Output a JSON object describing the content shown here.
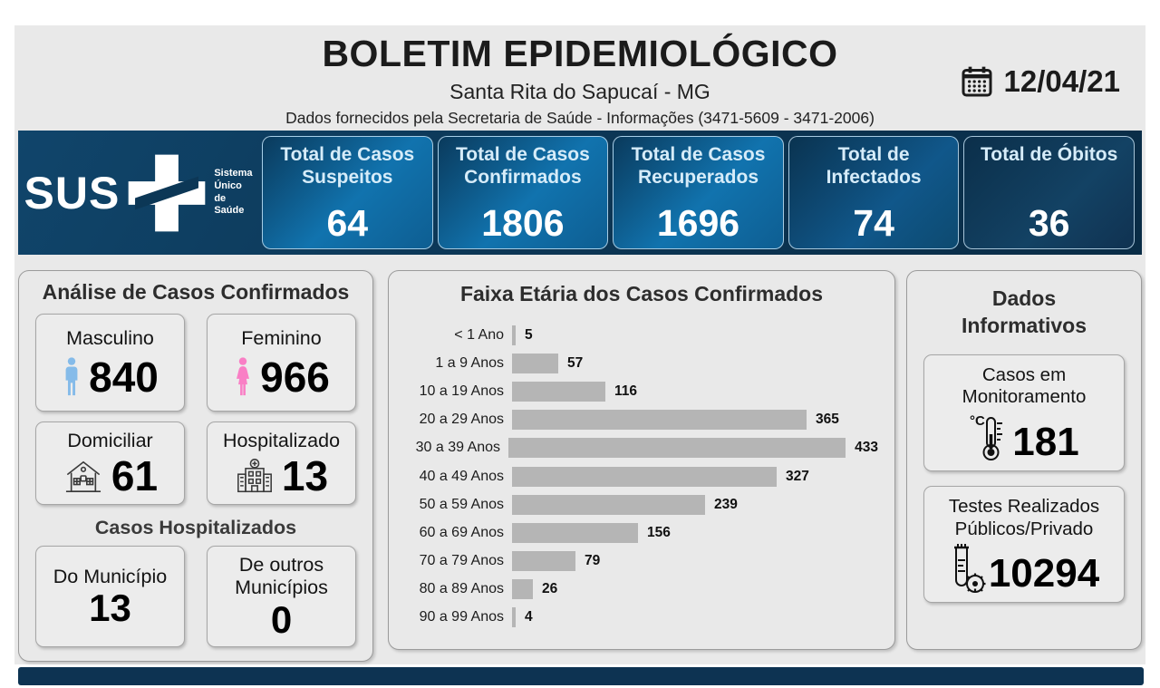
{
  "header": {
    "title": "BOLETIM EPIDEMIOLÓGICO",
    "subtitle": "Santa Rita do Sapucaí - MG",
    "info_line": "Dados fornecidos pela Secretaria de Saúde - Informações (3471-5609 - 3471-2006)",
    "date": "12/04/21"
  },
  "sus_logo": {
    "name": "SUS",
    "tagline": "Sistema\nÚnico\nde Saúde"
  },
  "summary_cards": [
    {
      "label": "Total de Casos Suspeitos",
      "value": "64"
    },
    {
      "label": "Total de Casos Confirmados",
      "value": "1806"
    },
    {
      "label": "Total de Casos Recuperados",
      "value": "1696"
    },
    {
      "label": "Total de Infectados",
      "value": "74"
    },
    {
      "label": "Total de Óbitos",
      "value": "36"
    }
  ],
  "analysis": {
    "title": "Análise de Casos Confirmados",
    "male": {
      "label": "Masculino",
      "value": "840",
      "icon": "male-icon"
    },
    "female": {
      "label": "Feminino",
      "value": "966",
      "icon": "female-icon"
    },
    "home": {
      "label": "Domiciliar",
      "value": "61",
      "icon": "house-icon"
    },
    "hospitalized": {
      "label": "Hospitalizado",
      "value": "13",
      "icon": "hospital-icon"
    },
    "hospital_section": {
      "title": "Casos Hospitalizados",
      "local": {
        "label": "Do Município",
        "value": "13"
      },
      "other": {
        "label": "De outros Municípios",
        "value": "0"
      }
    }
  },
  "chart_data": {
    "type": "bar",
    "orientation": "horizontal",
    "title": "Faixa Etária dos Casos Confirmados",
    "categories": [
      "< 1 Ano",
      "1 a 9 Anos",
      "10 a 19 Anos",
      "20 a 29 Anos",
      "30 a 39 Anos",
      "40 a 49 Anos",
      "50 a 59 Anos",
      "60 a 69 Anos",
      "70 a 79 Anos",
      "80 a 89 Anos",
      "90 a 99 Anos"
    ],
    "values": [
      5,
      57,
      116,
      365,
      433,
      327,
      239,
      156,
      79,
      26,
      4
    ],
    "xlim": [
      0,
      433
    ],
    "grid": false,
    "legend": "none",
    "data_labels": true,
    "bar_color": "#b5b5b5"
  },
  "info_panel": {
    "title": "Dados Informativos",
    "monitoring": {
      "label": "Casos em Monitoramento",
      "value": "181",
      "icon": "thermometer-icon"
    },
    "tests": {
      "label": "Testes Realizados Públicos/Privado",
      "value": "10294",
      "icon": "test-tube-icon"
    }
  },
  "colors": {
    "navy": "#0d3352",
    "card_blue": "#1173ae",
    "bar_gray": "#b5b5b5",
    "male_blue": "#85BBE9",
    "female_pink": "#F97FC5",
    "page_gray": "#e9e9e9"
  }
}
